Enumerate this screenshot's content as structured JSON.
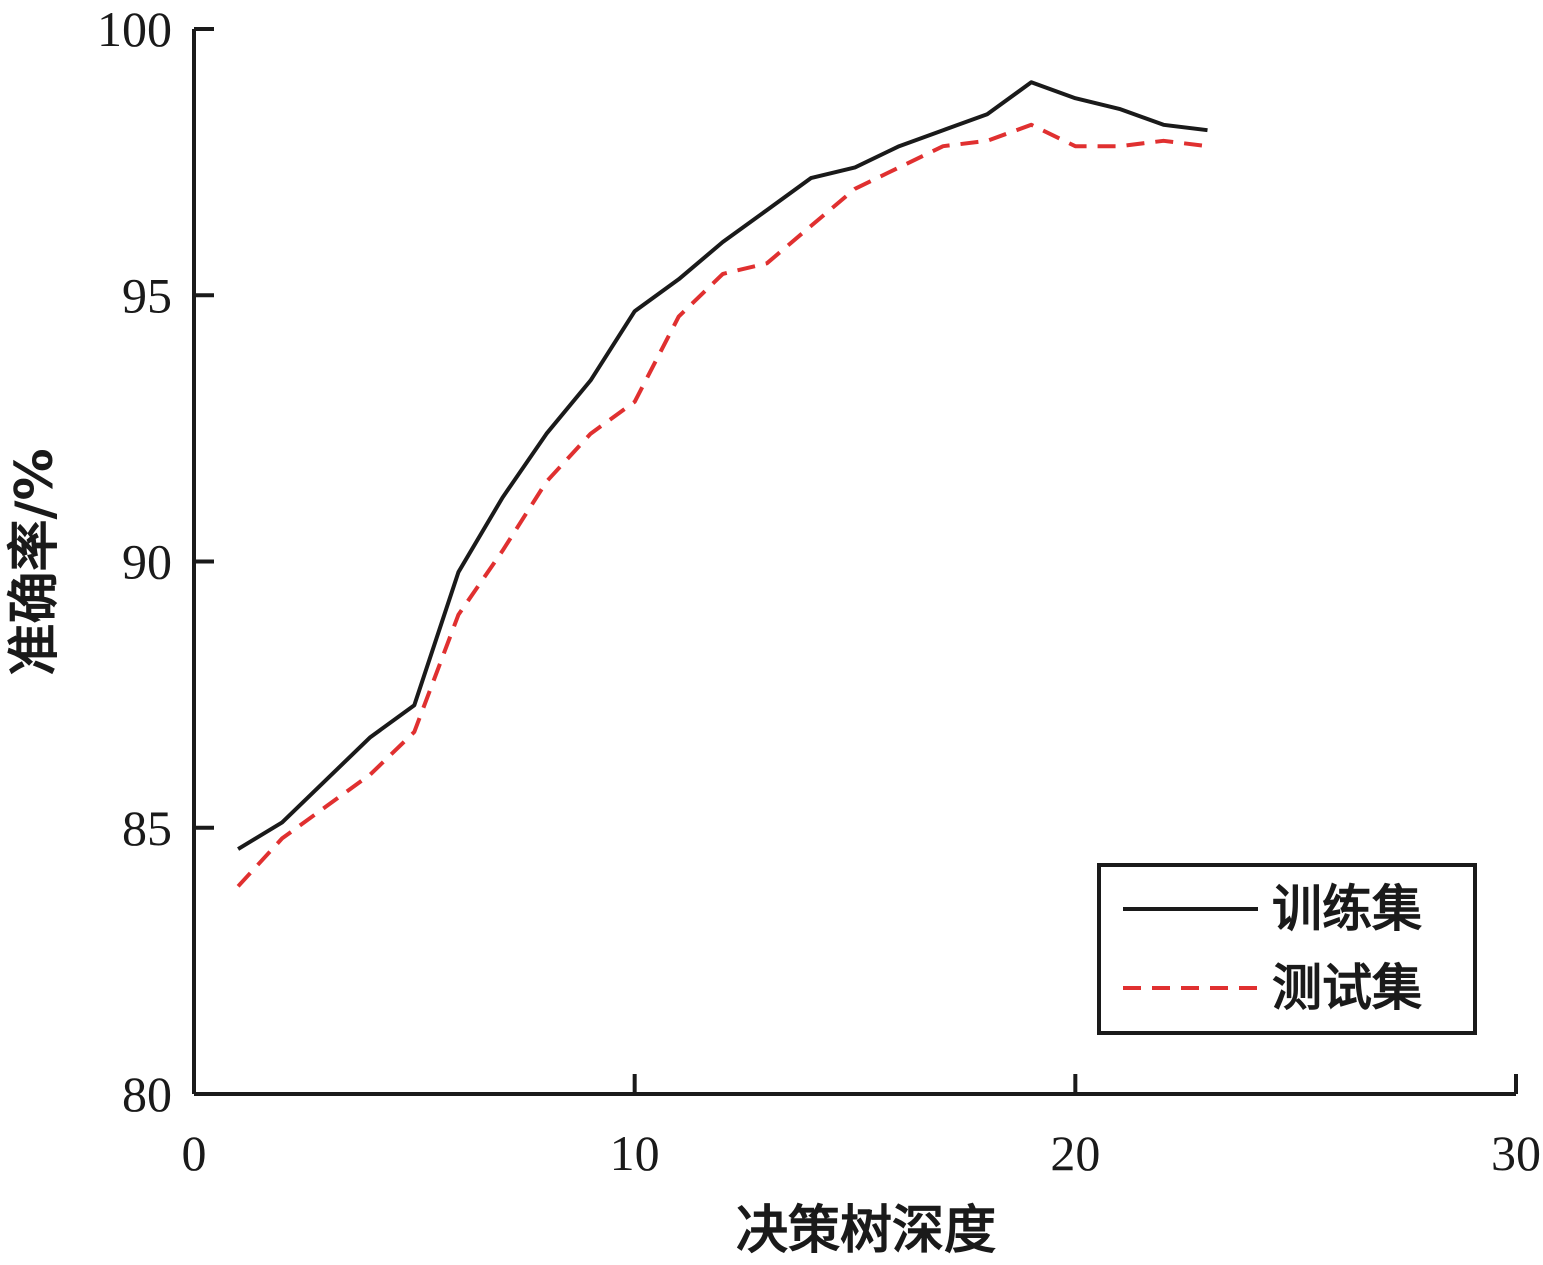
{
  "chart_data": {
    "type": "line",
    "xlabel": "决策树深度",
    "ylabel": "准确率/%",
    "xlim": [
      0,
      30
    ],
    "ylim": [
      80,
      100
    ],
    "xticks": [
      "0",
      "10",
      "20",
      "30"
    ],
    "yticks": [
      "80",
      "85",
      "90",
      "95",
      "100"
    ],
    "grid": false,
    "legend_position": "bottom-right",
    "series": [
      {
        "name": "训练集",
        "color": "#1a1a1a",
        "style": "solid",
        "x": [
          1,
          2,
          3,
          4,
          5,
          6,
          7,
          8,
          9,
          10,
          11,
          12,
          13,
          14,
          15,
          16,
          17,
          18,
          19,
          20,
          21,
          22,
          23
        ],
        "y": [
          84.6,
          85.1,
          85.9,
          86.7,
          87.3,
          89.8,
          91.2,
          92.4,
          93.4,
          94.7,
          95.3,
          96.0,
          96.6,
          97.2,
          97.4,
          97.8,
          98.1,
          98.4,
          99.0,
          98.7,
          98.5,
          98.2,
          98.1
        ]
      },
      {
        "name": "测试集",
        "color": "#e03030",
        "style": "dashed",
        "x": [
          1,
          2,
          3,
          4,
          5,
          6,
          7,
          8,
          9,
          10,
          11,
          12,
          13,
          14,
          15,
          16,
          17,
          18,
          19,
          20,
          21,
          22,
          23
        ],
        "y": [
          83.9,
          84.8,
          85.4,
          86.0,
          86.8,
          89.0,
          90.2,
          91.5,
          92.4,
          93.0,
          94.6,
          95.4,
          95.6,
          96.3,
          97.0,
          97.4,
          97.8,
          97.9,
          98.2,
          97.8,
          97.8,
          97.9,
          97.8
        ]
      }
    ]
  }
}
